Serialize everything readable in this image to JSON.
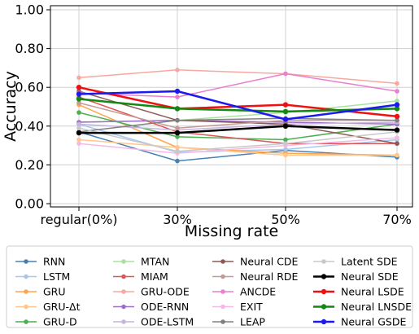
{
  "chart_data": {
    "type": "line",
    "xlabel": "Missing rate",
    "ylabel": "Accuracy",
    "x": [
      "regular(0%)",
      "30%",
      "50%",
      "70%"
    ],
    "ylim": [
      0.0,
      1.0
    ],
    "yticks": [
      "0.00",
      "0.20",
      "0.40",
      "0.60",
      "0.80",
      "1.00"
    ],
    "grid": true,
    "legend_position": "bottom, outside plot, 4 columns",
    "series": [
      {
        "name": "RNN",
        "color": "#4682b4",
        "width": 1.5,
        "values": [
          0.37,
          0.22,
          0.275,
          0.24
        ]
      },
      {
        "name": "LSTM",
        "color": "#a6c8f0",
        "width": 1.5,
        "values": [
          0.41,
          0.265,
          0.28,
          0.33
        ]
      },
      {
        "name": "GRU",
        "color": "#ffa64d",
        "width": 1.5,
        "values": [
          0.51,
          0.29,
          0.26,
          0.25
        ]
      },
      {
        "name": "GRU-Δt",
        "color": "#ffc78e",
        "width": 1.5,
        "values": [
          0.33,
          0.29,
          0.25,
          0.25
        ]
      },
      {
        "name": "GRU-D",
        "color": "#4caf50",
        "width": 1.5,
        "values": [
          0.47,
          0.345,
          0.33,
          0.41
        ]
      },
      {
        "name": "MTAN",
        "color": "#a8e39e",
        "width": 1.5,
        "values": [
          0.42,
          0.43,
          0.47,
          0.53
        ]
      },
      {
        "name": "MIAM",
        "color": "#e05555",
        "width": 1.5,
        "values": [
          0.55,
          0.37,
          0.31,
          0.31
        ]
      },
      {
        "name": "GRU-ODE",
        "color": "#f7a8a0",
        "width": 1.5,
        "values": [
          0.65,
          0.69,
          0.67,
          0.62
        ]
      },
      {
        "name": "ODE-RNN",
        "color": "#9c6fc2",
        "width": 1.5,
        "values": [
          0.42,
          0.43,
          0.42,
          0.41
        ]
      },
      {
        "name": "ODE-LSTM",
        "color": "#c5b3e0",
        "width": 1.5,
        "values": [
          0.41,
          0.38,
          0.41,
          0.42
        ]
      },
      {
        "name": "Neural CDE",
        "color": "#8d5a55",
        "width": 1.5,
        "values": [
          0.58,
          0.43,
          0.41,
          0.31
        ]
      },
      {
        "name": "Neural RDE",
        "color": "#c49a96",
        "width": 1.5,
        "values": [
          0.52,
          0.39,
          0.43,
          0.43
        ]
      },
      {
        "name": "ANCDE",
        "color": "#e87fcf",
        "width": 1.5,
        "values": [
          0.57,
          0.55,
          0.67,
          0.58
        ]
      },
      {
        "name": "EXIT",
        "color": "#f5b9e6",
        "width": 1.5,
        "values": [
          0.31,
          0.26,
          0.3,
          0.34
        ]
      },
      {
        "name": "LEAP",
        "color": "#808080",
        "width": 1.5,
        "values": [
          0.37,
          0.43,
          0.44,
          0.43
        ]
      },
      {
        "name": "Latent SDE",
        "color": "#c8c8c8",
        "width": 1.5,
        "values": [
          0.39,
          0.27,
          0.31,
          0.37
        ]
      },
      {
        "name": "Neural SDE",
        "color": "#000000",
        "width": 2.5,
        "values": [
          0.365,
          0.365,
          0.4,
          0.38
        ]
      },
      {
        "name": "Neural LSDE",
        "color": "#ee1111",
        "width": 2.5,
        "values": [
          0.6,
          0.49,
          0.51,
          0.45
        ]
      },
      {
        "name": "Neural LNSDE",
        "color": "#118811",
        "width": 2.5,
        "values": [
          0.54,
          0.49,
          0.475,
          0.49
        ]
      },
      {
        "name": "Neural GSDE",
        "color": "#1a1aee",
        "width": 2.5,
        "values": [
          0.565,
          0.58,
          0.435,
          0.51
        ]
      }
    ]
  }
}
